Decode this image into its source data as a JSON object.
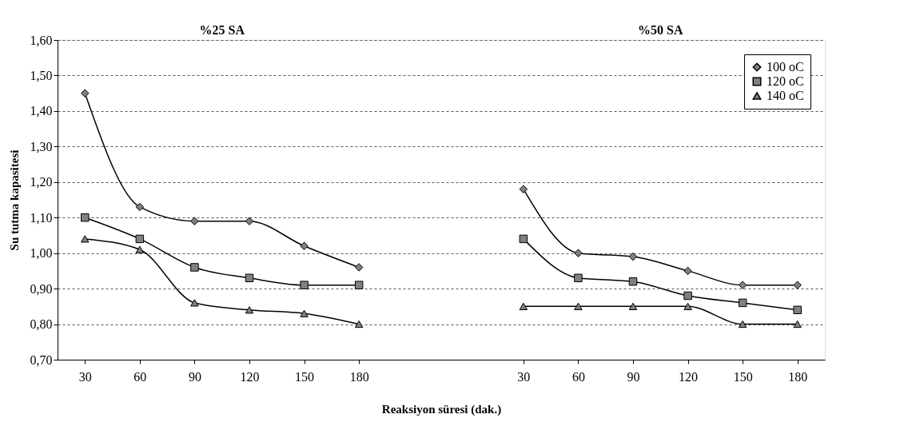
{
  "chart_data": {
    "type": "line",
    "xlabel": "Reaksiyon süresi (dak.)",
    "ylabel": "Su tutma kapasitesi",
    "annotations": [
      "%25 SA",
      "%50 SA"
    ],
    "categories": [
      "30",
      "60",
      "90",
      "120",
      "150",
      "180",
      null,
      null,
      "30",
      "60",
      "90",
      "120",
      "150",
      "180"
    ],
    "series": [
      {
        "name": "100 oC",
        "color": "#000000",
        "marker": "diamond",
        "values": [
          1.45,
          1.13,
          1.09,
          1.09,
          1.02,
          0.96,
          null,
          null,
          1.18,
          1.0,
          0.99,
          0.95,
          0.91,
          0.91
        ]
      },
      {
        "name": "120 oC",
        "color": "#000000",
        "marker": "square",
        "values": [
          1.1,
          1.04,
          0.96,
          0.93,
          0.91,
          0.91,
          null,
          null,
          1.04,
          0.93,
          0.92,
          0.88,
          0.86,
          0.84
        ]
      },
      {
        "name": "140 oC",
        "color": "#000000",
        "marker": "triangle",
        "values": [
          1.04,
          1.01,
          0.86,
          0.84,
          0.83,
          0.8,
          null,
          null,
          0.85,
          0.85,
          0.85,
          0.85,
          0.8,
          0.8
        ]
      }
    ],
    "ylim": [
      0.7,
      1.6
    ],
    "yticks": [
      {
        "value": 0.7,
        "label": "0,70"
      },
      {
        "value": 0.8,
        "label": "0,80"
      },
      {
        "value": 0.9,
        "label": "0,90"
      },
      {
        "value": 1.0,
        "label": "1,00"
      },
      {
        "value": 1.1,
        "label": "1,10"
      },
      {
        "value": 1.2,
        "label": "1,20"
      },
      {
        "value": 1.3,
        "label": "1,30"
      },
      {
        "value": 1.4,
        "label": "1,40"
      },
      {
        "value": 1.5,
        "label": "1,50"
      },
      {
        "value": 1.6,
        "label": "1,60"
      }
    ],
    "grid": "y",
    "legend": "top right",
    "line_style": "solid"
  }
}
